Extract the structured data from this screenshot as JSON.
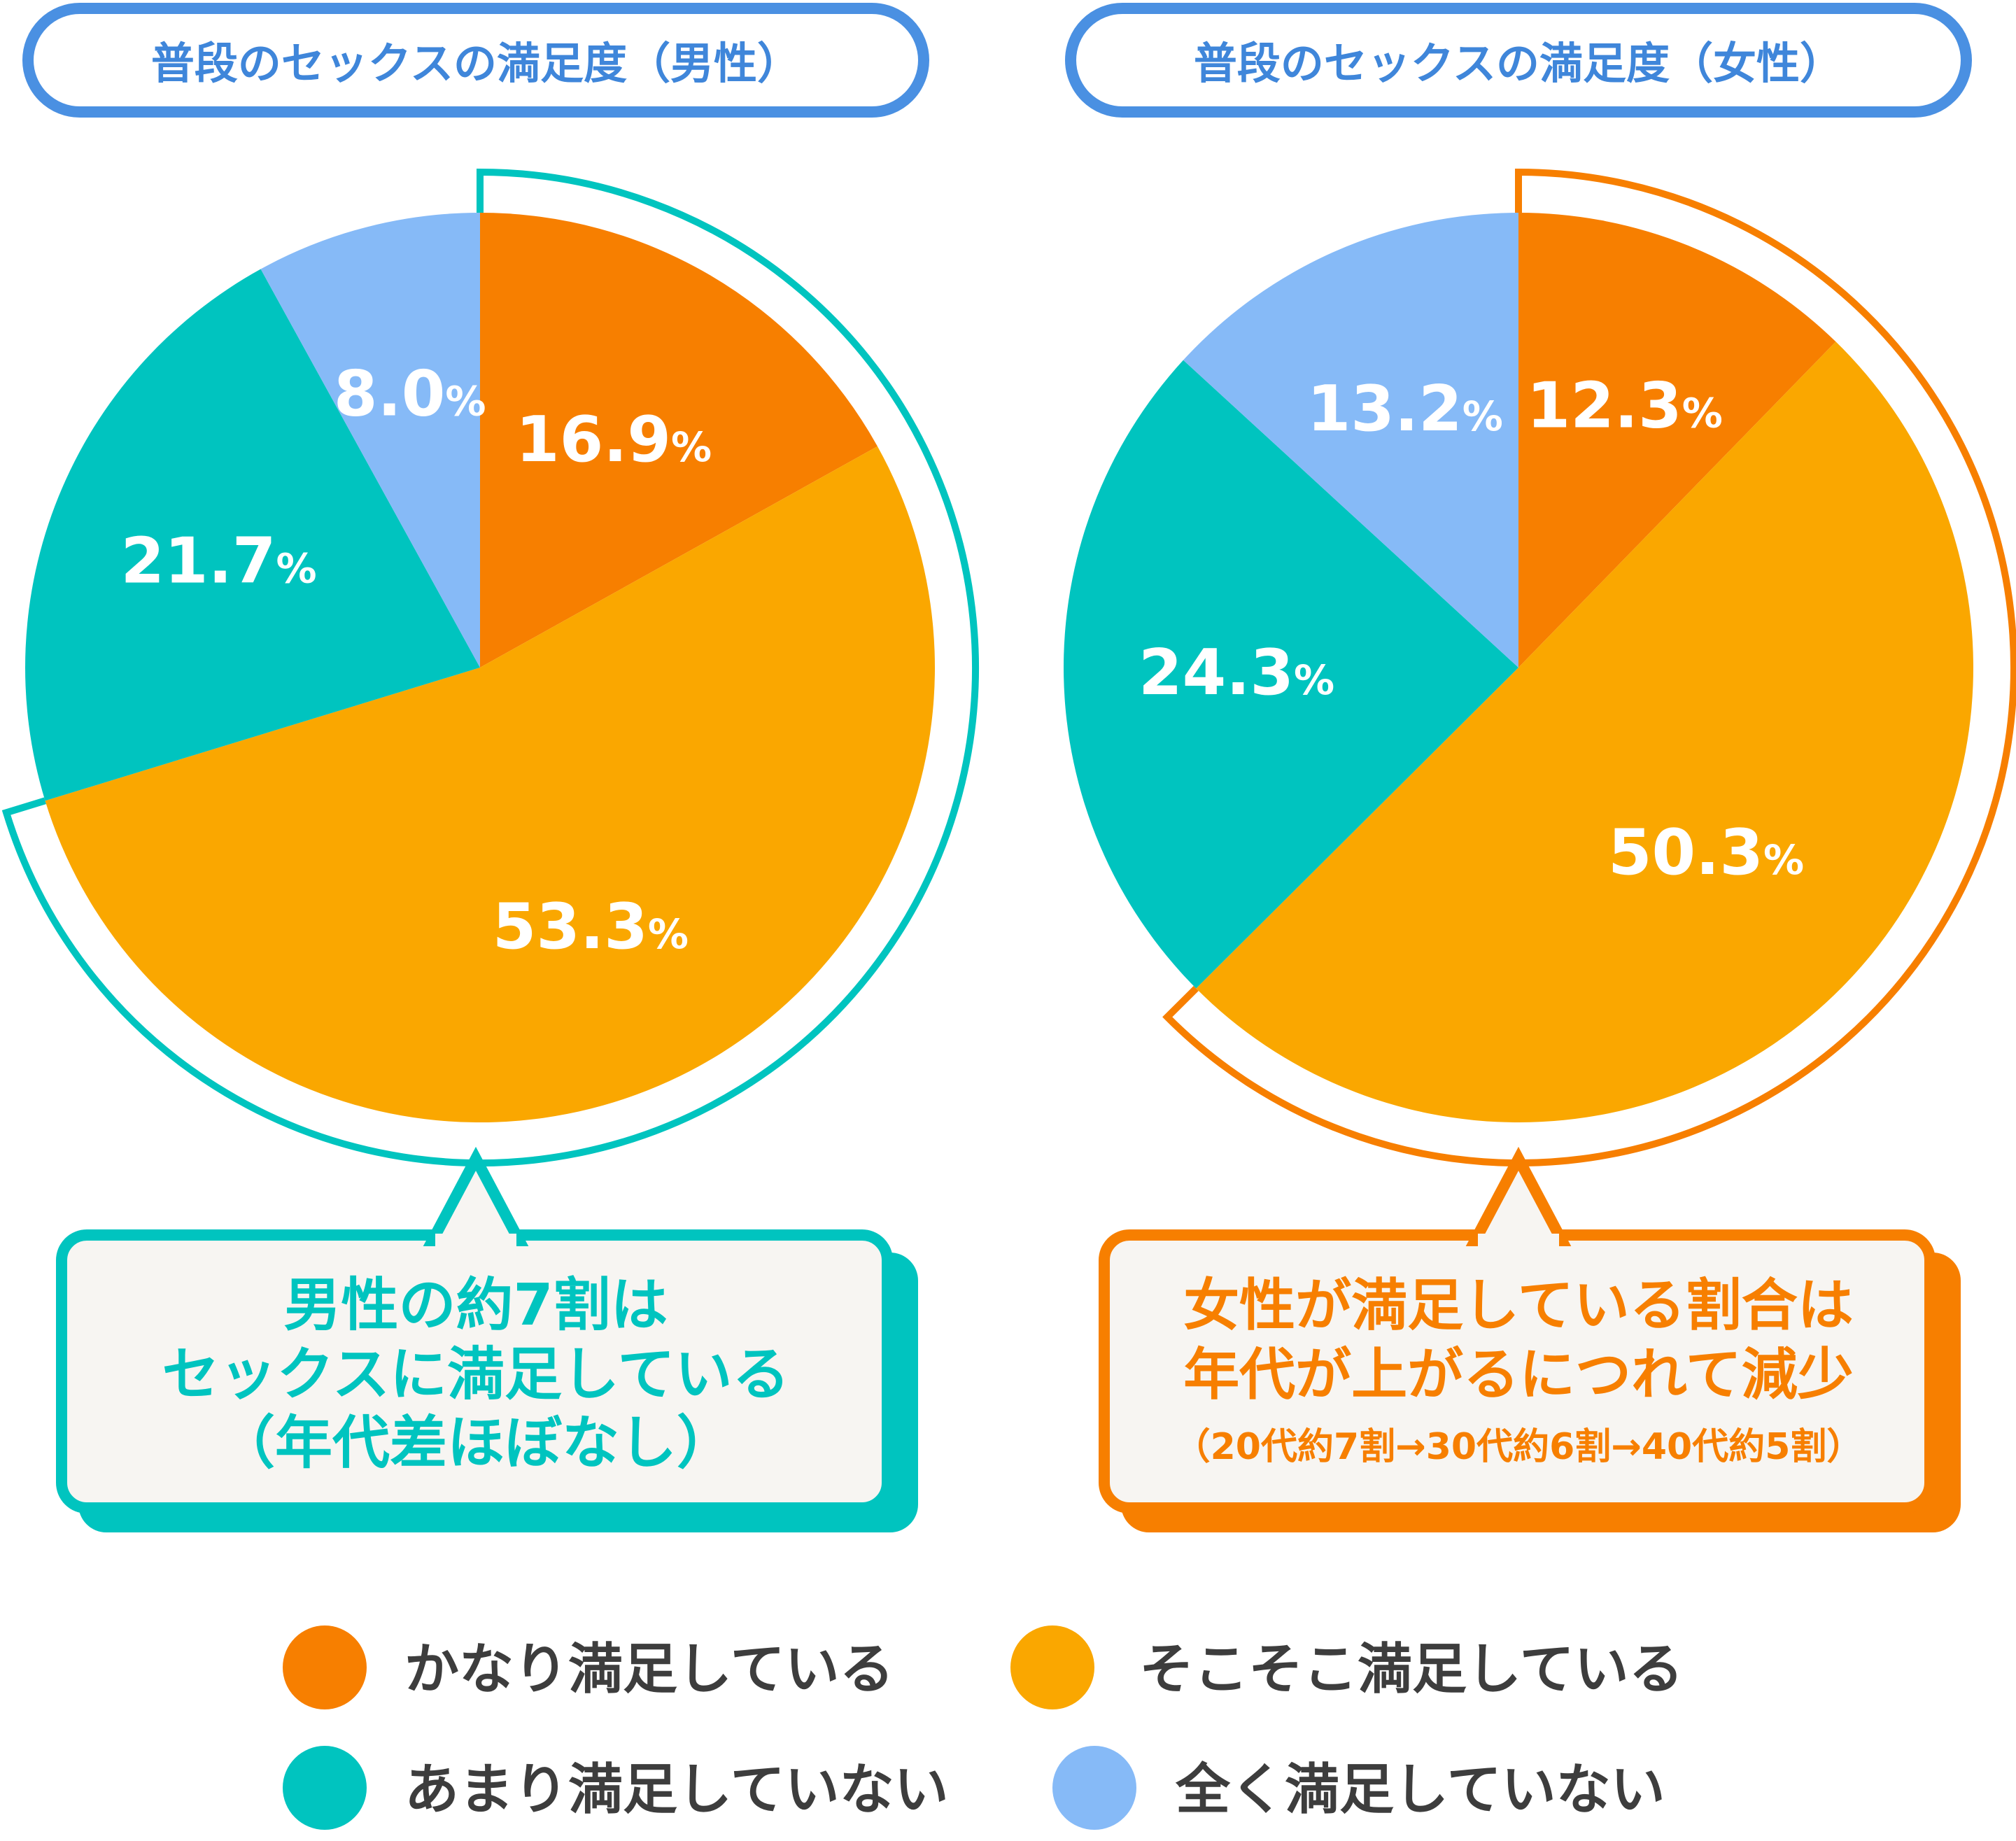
{
  "chart_data": [
    {
      "type": "pie",
      "title": "普段のセックスの満足度（男性）",
      "categories": [
        "かなり満足している",
        "そこそこ満足している",
        "あまり満足していない",
        "全く満足していない"
      ],
      "values": [
        16.9,
        53.3,
        21.7,
        8.0
      ],
      "value_suffix": "%",
      "highlight_categories": [
        "かなり満足している",
        "そこそこ満足している"
      ],
      "callout": {
        "lines": [
          "男性の約7割は",
          "セックスに満足している",
          "（年代差ほぼなし）"
        ]
      }
    },
    {
      "type": "pie",
      "title": "普段のセックスの満足度（女性）",
      "categories": [
        "かなり満足している",
        "そこそこ満足している",
        "あまり満足していない",
        "全く満足していない"
      ],
      "values": [
        12.3,
        50.3,
        24.3,
        13.2
      ],
      "value_suffix": "%",
      "highlight_categories": [
        "かなり満足している",
        "そこそこ満足している"
      ],
      "callout": {
        "lines": [
          "女性が満足している割合は",
          "年代が上がるにつれて減少",
          "（20代約7割→30代約6割→40代約5割）"
        ]
      }
    }
  ],
  "legend": {
    "placement": "bottom",
    "items": [
      {
        "label": "かなり満足している",
        "color": "#F77F00"
      },
      {
        "label": "そこそこ満足している",
        "color": "#FAA700"
      },
      {
        "label": "あまり満足していない",
        "color": "#00C4BF"
      },
      {
        "label": "全く満足していない",
        "color": "#86BAF7"
      }
    ]
  },
  "colors": {
    "slices": [
      "#F77F00",
      "#FAA700",
      "#00C4BF",
      "#86BAF7"
    ],
    "title_border": "#4A90E2",
    "title_text": "#3F86DA",
    "male_accent": "#00C4BF",
    "female_accent": "#F77F00",
    "callout_fill": "#F7F5F2",
    "legend_text": "#3D3D3D"
  }
}
